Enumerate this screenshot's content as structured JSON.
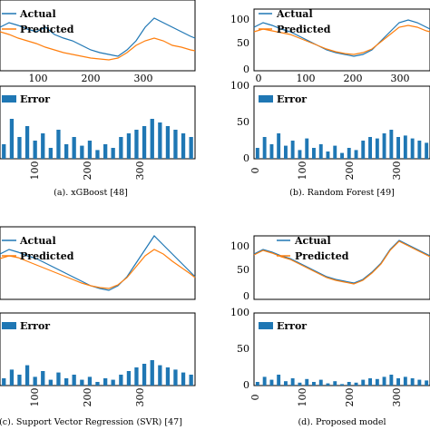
{
  "colors": {
    "actual": "#1f77b4",
    "predicted": "#ff7f0e",
    "error": "#1f77b4"
  },
  "chart_data": [
    {
      "type": "line",
      "panel": "a",
      "caption": "(a). xGBoost [48]",
      "legend": [
        "Actual",
        "Predicted",
        "Error"
      ],
      "top_plot": {
        "x_ticks": [
          100,
          200,
          300
        ],
        "y_ticks": [],
        "ylim": [
          0,
          150
        ],
        "xlim": [
          0,
          365
        ]
      },
      "error_plot": {
        "type": "bar",
        "x_ticks": [
          100,
          200,
          300
        ],
        "y_ticks": [],
        "ylim": [
          0,
          100
        ],
        "xlim": [
          0,
          365
        ]
      },
      "series": [
        {
          "name": "Actual",
          "x": [
            0,
            15,
            30,
            45,
            60,
            75,
            90,
            105,
            120,
            135,
            150,
            165,
            180,
            195,
            210,
            225,
            240,
            255,
            270,
            285,
            300,
            315,
            330,
            345,
            360
          ],
          "values": [
            70,
            85,
            75,
            68,
            72,
            60,
            55,
            48,
            42,
            38,
            30,
            25,
            20,
            18,
            22,
            40,
            65,
            85,
            95,
            105,
            95,
            90,
            80,
            70,
            65
          ]
        },
        {
          "name": "Predicted",
          "x": [
            0,
            15,
            30,
            45,
            60,
            75,
            90,
            105,
            120,
            135,
            150,
            165,
            180,
            195,
            210,
            225,
            240,
            255,
            270,
            285,
            300,
            315,
            330,
            345,
            360
          ],
          "values": [
            65,
            70,
            60,
            55,
            50,
            45,
            40,
            35,
            30,
            25,
            22,
            20,
            18,
            17,
            18,
            25,
            40,
            55,
            65,
            70,
            60,
            55,
            50,
            45,
            45
          ]
        },
        {
          "name": "Error",
          "error_level": "high",
          "values": [
            20,
            55,
            30,
            45,
            25,
            35,
            15,
            40,
            20,
            30,
            18,
            25,
            12,
            20,
            15,
            30,
            35,
            40,
            45,
            55,
            50,
            45,
            40,
            35,
            30
          ]
        }
      ]
    },
    {
      "type": "line",
      "panel": "b",
      "caption": "(b). Random Forest [49]",
      "legend": [
        "Actual",
        "Predicted",
        "Error"
      ],
      "top_plot": {
        "x_ticks": [
          0,
          100,
          200,
          300
        ],
        "y_ticks": [
          0,
          50,
          100
        ],
        "ylim": [
          0,
          140
        ],
        "xlim": [
          0,
          365
        ]
      },
      "error_plot": {
        "type": "bar",
        "x_ticks": [
          0,
          100,
          200,
          300
        ],
        "y_ticks": [
          0,
          50,
          100
        ],
        "ylim": [
          0,
          100
        ],
        "xlim": [
          0,
          365
        ]
      },
      "series": [
        {
          "name": "Actual",
          "x": [
            0,
            15,
            30,
            45,
            60,
            75,
            90,
            105,
            120,
            135,
            150,
            165,
            180,
            195,
            210,
            225,
            240,
            255,
            270,
            285,
            300,
            315,
            330,
            345,
            360
          ],
          "values": [
            95,
            80,
            85,
            70,
            65,
            60,
            55,
            45,
            38,
            32,
            26,
            22,
            18,
            15,
            20,
            35,
            55,
            75,
            85,
            90,
            95,
            88,
            80,
            72,
            70
          ]
        },
        {
          "name": "Predicted",
          "x": [
            0,
            15,
            30,
            45,
            60,
            75,
            90,
            105,
            120,
            135,
            150,
            165,
            180,
            195,
            210,
            225,
            240,
            255,
            270,
            285,
            300,
            315,
            330,
            345,
            360
          ],
          "values": [
            85,
            78,
            75,
            68,
            62,
            56,
            50,
            44,
            36,
            30,
            25,
            22,
            18,
            16,
            22,
            35,
            52,
            70,
            82,
            88,
            92,
            86,
            78,
            72,
            70
          ]
        },
        {
          "name": "Error",
          "error_level": "medium",
          "values": [
            15,
            30,
            20,
            35,
            18,
            25,
            12,
            28,
            15,
            20,
            10,
            18,
            8,
            15,
            12,
            25,
            30,
            28,
            35,
            40,
            30,
            32,
            28,
            25,
            22
          ]
        }
      ]
    },
    {
      "type": "line",
      "panel": "c",
      "caption": "(c). Support Vector Regression (SVR) [47]",
      "legend": [
        "Actual",
        "Predicted",
        "Error"
      ],
      "top_plot": {
        "x_ticks": [
          100,
          200,
          300
        ],
        "y_ticks": [],
        "ylim": [
          0,
          150
        ],
        "xlim": [
          0,
          365
        ]
      },
      "error_plot": {
        "type": "bar",
        "x_ticks": [
          100,
          200,
          300
        ],
        "y_ticks": [],
        "ylim": [
          0,
          100
        ],
        "xlim": [
          0,
          365
        ]
      },
      "series": [
        {
          "name": "Actual",
          "x": [
            0,
            15,
            30,
            45,
            60,
            75,
            90,
            105,
            120,
            135,
            150,
            165,
            180,
            195,
            210,
            225,
            240,
            255,
            270,
            285,
            300,
            315,
            330,
            345,
            360
          ],
          "values": [
            80,
            75,
            78,
            70,
            62,
            55,
            48,
            42,
            36,
            30,
            26,
            22,
            20,
            18,
            24,
            40,
            60,
            80,
            92,
            100,
            95,
            85,
            78,
            72,
            68
          ]
        },
        {
          "name": "Predicted",
          "x": [
            0,
            15,
            30,
            45,
            60,
            75,
            90,
            105,
            120,
            135,
            150,
            165,
            180,
            195,
            210,
            225,
            240,
            255,
            270,
            285,
            300,
            315,
            330,
            345,
            360
          ],
          "values": [
            72,
            70,
            68,
            62,
            56,
            50,
            45,
            40,
            35,
            30,
            26,
            23,
            21,
            20,
            25,
            38,
            55,
            72,
            85,
            90,
            88,
            80,
            74,
            70,
            66
          ]
        },
        {
          "name": "Error",
          "error_level": "low",
          "values": [
            10,
            22,
            15,
            28,
            12,
            20,
            8,
            18,
            10,
            15,
            8,
            12,
            5,
            10,
            8,
            15,
            20,
            25,
            30,
            35,
            28,
            25,
            22,
            18,
            15
          ]
        }
      ]
    },
    {
      "type": "line",
      "panel": "d",
      "caption": "(d). Proposed model",
      "legend": [
        "Actual",
        "Predicted",
        "Error"
      ],
      "top_plot": {
        "x_ticks": [
          0,
          100,
          200,
          300
        ],
        "y_ticks": [
          0,
          50,
          100
        ],
        "ylim": [
          0,
          140
        ],
        "xlim": [
          0,
          365
        ]
      },
      "error_plot": {
        "type": "bar",
        "x_ticks": [
          0,
          100,
          200,
          300
        ],
        "y_ticks": [
          0,
          50,
          100
        ],
        "ylim": [
          0,
          100
        ],
        "xlim": [
          0,
          365
        ]
      },
      "series": [
        {
          "name": "Actual",
          "x": [
            0,
            15,
            30,
            45,
            60,
            75,
            90,
            105,
            120,
            135,
            150,
            165,
            180,
            195,
            210,
            225,
            240,
            255,
            270,
            285,
            300,
            315,
            330,
            345,
            360
          ],
          "values": [
            100,
            85,
            90,
            75,
            68,
            60,
            52,
            45,
            38,
            32,
            26,
            22,
            18,
            15,
            20,
            35,
            55,
            75,
            90,
            110,
            105,
            95,
            85,
            78,
            75
          ]
        },
        {
          "name": "Predicted",
          "x": [
            0,
            15,
            30,
            45,
            60,
            75,
            90,
            105,
            120,
            135,
            150,
            165,
            180,
            195,
            210,
            225,
            240,
            255,
            270,
            285,
            300,
            315,
            330,
            345,
            360
          ],
          "values": [
            98,
            84,
            88,
            74,
            67,
            59,
            51,
            44,
            37,
            31,
            25,
            21,
            18,
            15,
            20,
            34,
            54,
            74,
            88,
            108,
            103,
            94,
            84,
            77,
            74
          ]
        },
        {
          "name": "Error",
          "error_level": "very-low",
          "values": [
            5,
            12,
            8,
            15,
            6,
            10,
            4,
            9,
            5,
            8,
            3,
            6,
            2,
            5,
            4,
            8,
            10,
            9,
            12,
            15,
            10,
            12,
            10,
            8,
            7
          ]
        }
      ]
    }
  ]
}
